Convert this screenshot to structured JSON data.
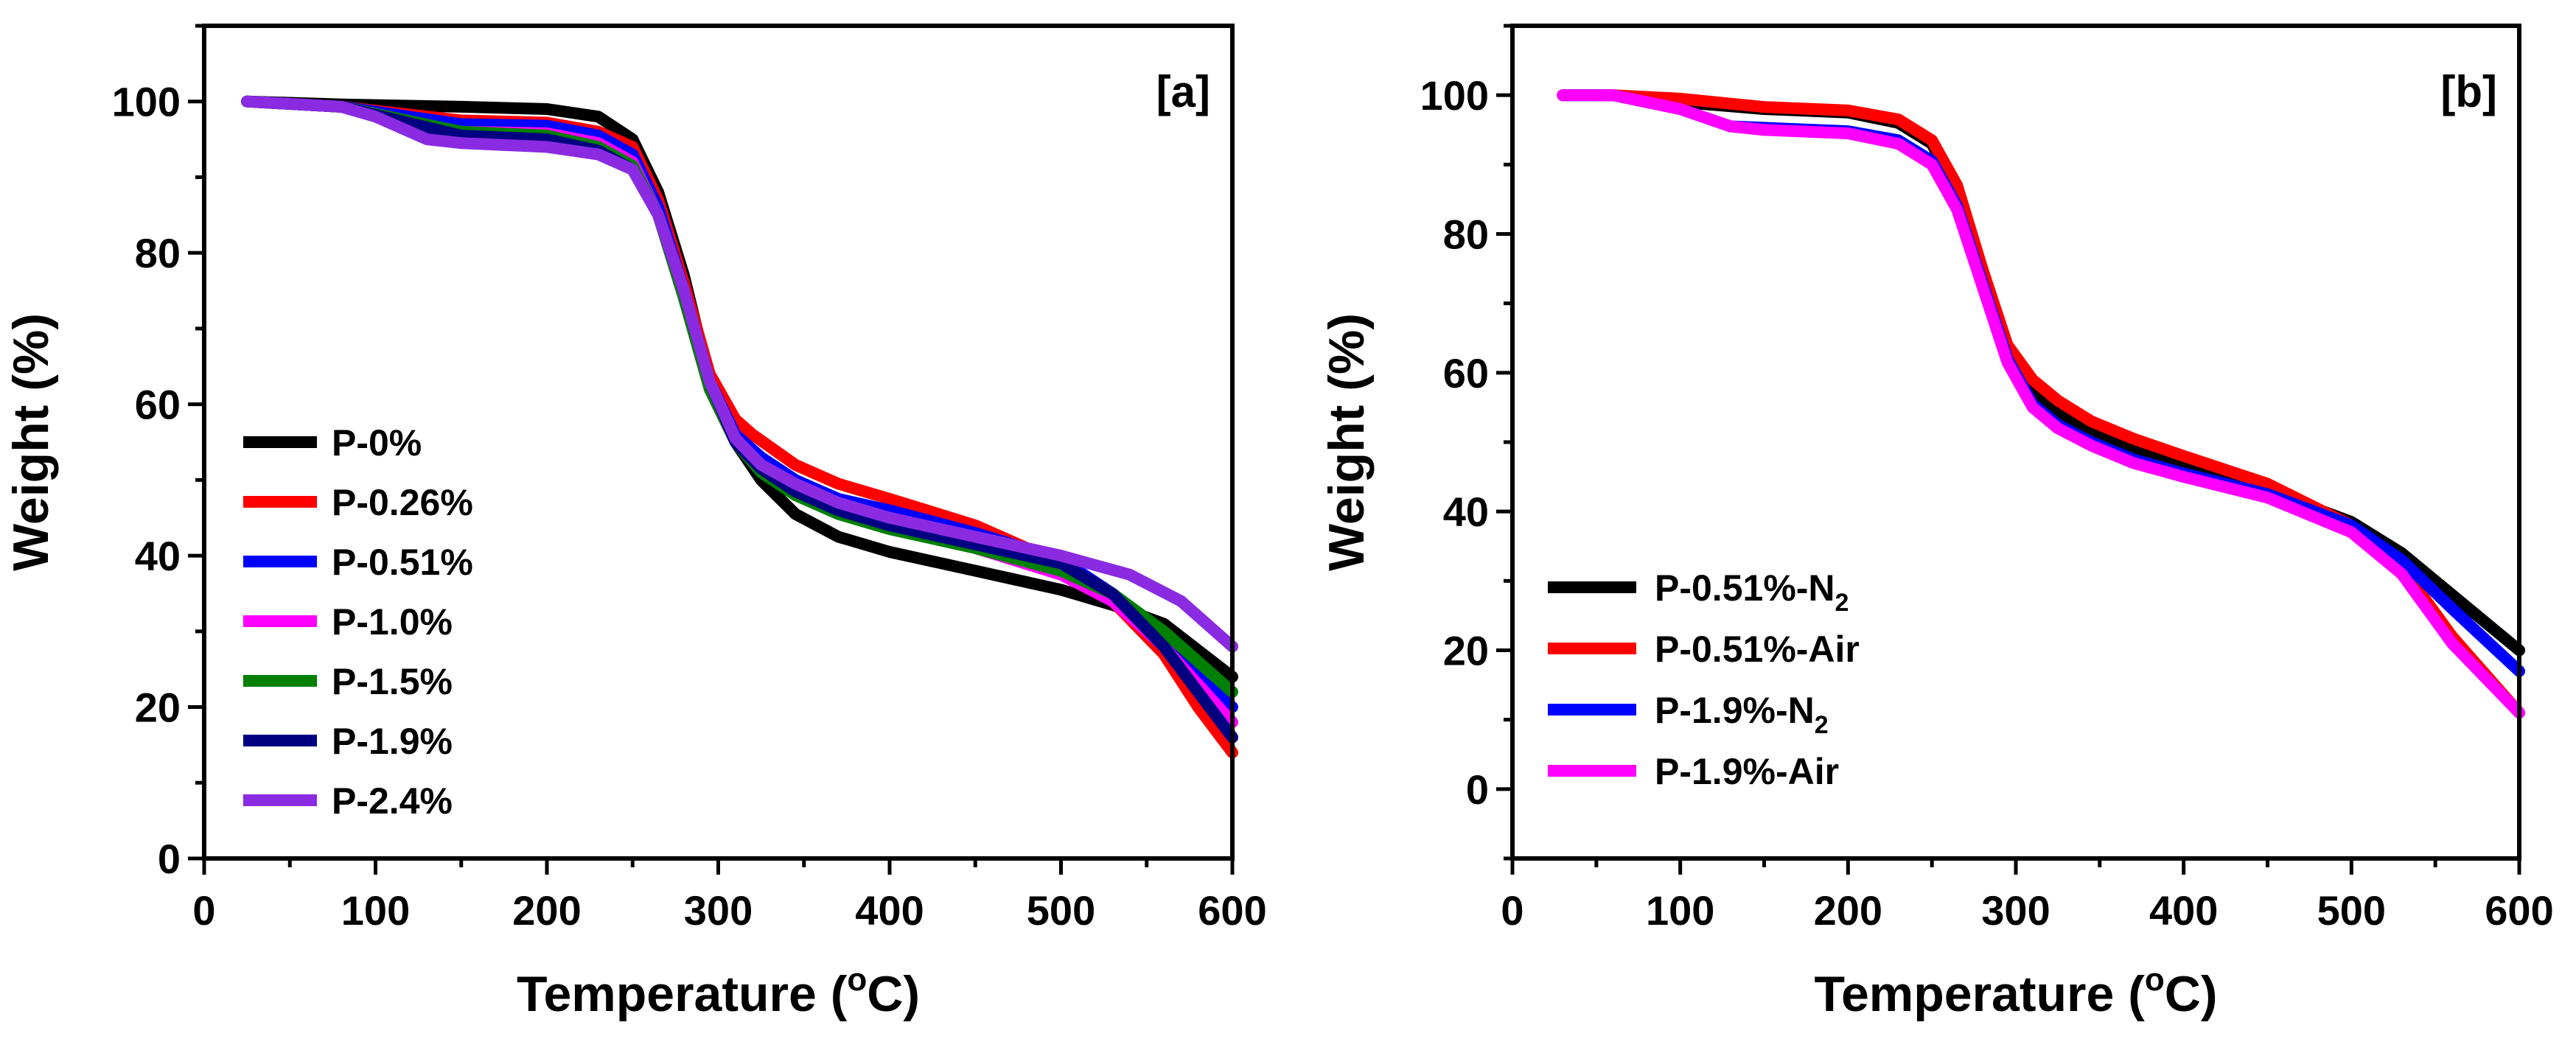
{
  "chart_data": [
    {
      "type": "line",
      "panel_label": "[a]",
      "xlabel": "Temperature (",
      "xlabel_sup": "o",
      "xlabel_tail": "C)",
      "ylabel": "Weight (%)",
      "xlim": [
        0,
        600
      ],
      "ylim": [
        0,
        110
      ],
      "xticks": [
        "0",
        "100",
        "200",
        "300",
        "400",
        "500",
        "600"
      ],
      "yticks": [
        "0",
        "20",
        "40",
        "60",
        "80",
        "100"
      ],
      "legend_position": "left-bottom",
      "series": [
        {
          "name": "P-0%",
          "color": "#000000",
          "points": [
            [
              25,
              100
            ],
            [
              80,
              99.6
            ],
            [
              150,
              99.3
            ],
            [
              200,
              99
            ],
            [
              230,
              98
            ],
            [
              250,
              95
            ],
            [
              265,
              88
            ],
            [
              280,
              77
            ],
            [
              295,
              63
            ],
            [
              310,
              55
            ],
            [
              325,
              50
            ],
            [
              345,
              45.5
            ],
            [
              370,
              42.5
            ],
            [
              400,
              40.5
            ],
            [
              450,
              38
            ],
            [
              500,
              35.5
            ],
            [
              530,
              33.5
            ],
            [
              560,
              31
            ],
            [
              600,
              24
            ]
          ]
        },
        {
          "name": "P-0.26%",
          "color": "#ff0000",
          "points": [
            [
              25,
              100
            ],
            [
              80,
              99.3
            ],
            [
              150,
              97.5
            ],
            [
              200,
              97.2
            ],
            [
              230,
              96
            ],
            [
              250,
              94
            ],
            [
              265,
              87
            ],
            [
              280,
              76
            ],
            [
              295,
              64
            ],
            [
              310,
              58
            ],
            [
              320,
              56
            ],
            [
              345,
              52
            ],
            [
              370,
              49.5
            ],
            [
              400,
              47.5
            ],
            [
              450,
              44
            ],
            [
              500,
              39
            ],
            [
              530,
              34
            ],
            [
              560,
              27
            ],
            [
              580,
              20
            ],
            [
              600,
              14
            ]
          ]
        },
        {
          "name": "P-0.51%",
          "color": "#0000ff",
          "points": [
            [
              25,
              100
            ],
            [
              80,
              99.3
            ],
            [
              150,
              97
            ],
            [
              200,
              96.8
            ],
            [
              230,
              95.5
            ],
            [
              250,
              93
            ],
            [
              265,
              86
            ],
            [
              280,
              75
            ],
            [
              295,
              63
            ],
            [
              310,
              56
            ],
            [
              325,
              53
            ],
            [
              345,
              50
            ],
            [
              370,
              47.5
            ],
            [
              400,
              46
            ],
            [
              450,
              43
            ],
            [
              500,
              39.5
            ],
            [
              530,
              35
            ],
            [
              560,
              29
            ],
            [
              600,
              20
            ]
          ]
        },
        {
          "name": "P-1.0%",
          "color": "#ff00ff",
          "points": [
            [
              25,
              100
            ],
            [
              80,
              99.3
            ],
            [
              150,
              96
            ],
            [
              200,
              95.8
            ],
            [
              230,
              94.5
            ],
            [
              250,
              92
            ],
            [
              265,
              85
            ],
            [
              280,
              74
            ],
            [
              295,
              62
            ],
            [
              310,
              55
            ],
            [
              325,
              52
            ],
            [
              345,
              49
            ],
            [
              370,
              46.5
            ],
            [
              400,
              44.5
            ],
            [
              450,
              41
            ],
            [
              500,
              37.5
            ],
            [
              530,
              34
            ],
            [
              560,
              28
            ],
            [
              600,
              18
            ]
          ]
        },
        {
          "name": "P-1.5%",
          "color": "#008000",
          "points": [
            [
              25,
              100
            ],
            [
              80,
              99.3
            ],
            [
              150,
              96
            ],
            [
              200,
              95.5
            ],
            [
              230,
              94
            ],
            [
              250,
              91.5
            ],
            [
              265,
              85
            ],
            [
              280,
              74
            ],
            [
              295,
              62
            ],
            [
              310,
              55
            ],
            [
              325,
              51
            ],
            [
              345,
              48
            ],
            [
              370,
              45.5
            ],
            [
              400,
              43.5
            ],
            [
              450,
              41
            ],
            [
              500,
              38
            ],
            [
              530,
              35
            ],
            [
              560,
              30
            ],
            [
              600,
              22
            ]
          ]
        },
        {
          "name": "P-1.9%",
          "color": "#000080",
          "points": [
            [
              25,
              100
            ],
            [
              80,
              99.3
            ],
            [
              150,
              95.5
            ],
            [
              200,
              95
            ],
            [
              230,
              93.5
            ],
            [
              250,
              91
            ],
            [
              265,
              85
            ],
            [
              280,
              75
            ],
            [
              295,
              63
            ],
            [
              310,
              55
            ],
            [
              325,
              51.5
            ],
            [
              345,
              48.5
            ],
            [
              370,
              46
            ],
            [
              400,
              44
            ],
            [
              450,
              41.5
            ],
            [
              500,
              39
            ],
            [
              530,
              35
            ],
            [
              560,
              28
            ],
            [
              600,
              16
            ]
          ]
        },
        {
          "name": "P-2.4%",
          "color": "#8a2be2",
          "points": [
            [
              25,
              100
            ],
            [
              80,
              99.3
            ],
            [
              100,
              98
            ],
            [
              130,
              95
            ],
            [
              150,
              94.5
            ],
            [
              200,
              94
            ],
            [
              230,
              93
            ],
            [
              250,
              91
            ],
            [
              265,
              85
            ],
            [
              280,
              75
            ],
            [
              295,
              63
            ],
            [
              310,
              55.5
            ],
            [
              325,
              52
            ],
            [
              345,
              49.5
            ],
            [
              370,
              47
            ],
            [
              400,
              45
            ],
            [
              450,
              42.5
            ],
            [
              500,
              40
            ],
            [
              540,
              37.5
            ],
            [
              570,
              34
            ],
            [
              600,
              28
            ]
          ]
        }
      ]
    },
    {
      "type": "line",
      "panel_label": "[b]",
      "xlabel": "Temperature (",
      "xlabel_sup": "o",
      "xlabel_tail": "C)",
      "ylabel": "Weight (%)",
      "xlim": [
        0,
        600
      ],
      "ylim": [
        -10,
        110
      ],
      "xticks": [
        "0",
        "100",
        "200",
        "300",
        "400",
        "500",
        "600"
      ],
      "yticks": [
        "0",
        "20",
        "40",
        "60",
        "80",
        "100"
      ],
      "legend_position": "left-bottom",
      "series": [
        {
          "name": "P-0.51%-N",
          "sub": "2",
          "color": "#000000",
          "points": [
            [
              30,
              100
            ],
            [
              60,
              100
            ],
            [
              100,
              99
            ],
            [
              150,
              98
            ],
            [
              200,
              97.5
            ],
            [
              230,
              96
            ],
            [
              250,
              93
            ],
            [
              265,
              86
            ],
            [
              280,
              74
            ],
            [
              295,
              63
            ],
            [
              310,
              57
            ],
            [
              325,
              54
            ],
            [
              345,
              51.5
            ],
            [
              370,
              49
            ],
            [
              400,
              46.5
            ],
            [
              450,
              43
            ],
            [
              500,
              38.5
            ],
            [
              530,
              34
            ],
            [
              560,
              28
            ],
            [
              600,
              20
            ]
          ]
        },
        {
          "name": "P-0.51%-Air",
          "sub": "",
          "color": "#ff0000",
          "points": [
            [
              30,
              100
            ],
            [
              60,
              100
            ],
            [
              100,
              99.5
            ],
            [
              150,
              98.3
            ],
            [
              200,
              97.8
            ],
            [
              230,
              96.5
            ],
            [
              250,
              93.5
            ],
            [
              265,
              87
            ],
            [
              280,
              75
            ],
            [
              295,
              64
            ],
            [
              310,
              59
            ],
            [
              325,
              56
            ],
            [
              345,
              53
            ],
            [
              370,
              50.5
            ],
            [
              400,
              48
            ],
            [
              450,
              44
            ],
            [
              500,
              38
            ],
            [
              530,
              32
            ],
            [
              560,
              22
            ],
            [
              600,
              11
            ]
          ]
        },
        {
          "name": "P-1.9%-N",
          "sub": "2",
          "color": "#0000ff",
          "points": [
            [
              30,
              100
            ],
            [
              60,
              100
            ],
            [
              100,
              98
            ],
            [
              130,
              95.5
            ],
            [
              150,
              95.3
            ],
            [
              200,
              94.8
            ],
            [
              230,
              93.5
            ],
            [
              250,
              90.5
            ],
            [
              265,
              84
            ],
            [
              280,
              73
            ],
            [
              295,
              62
            ],
            [
              310,
              55.5
            ],
            [
              325,
              52.5
            ],
            [
              345,
              50
            ],
            [
              370,
              47.5
            ],
            [
              400,
              45.5
            ],
            [
              450,
              42.5
            ],
            [
              500,
              38
            ],
            [
              530,
              33
            ],
            [
              560,
              26
            ],
            [
              600,
              17
            ]
          ]
        },
        {
          "name": "P-1.9%-Air",
          "sub": "",
          "color": "#ff00ff",
          "points": [
            [
              30,
              100
            ],
            [
              60,
              100
            ],
            [
              100,
              98
            ],
            [
              130,
              95.5
            ],
            [
              150,
              95
            ],
            [
              200,
              94.5
            ],
            [
              230,
              93
            ],
            [
              250,
              90
            ],
            [
              265,
              83.5
            ],
            [
              280,
              72.5
            ],
            [
              295,
              61.5
            ],
            [
              310,
              55
            ],
            [
              325,
              52
            ],
            [
              345,
              49.5
            ],
            [
              370,
              47
            ],
            [
              400,
              45
            ],
            [
              450,
              42
            ],
            [
              500,
              37
            ],
            [
              530,
              31
            ],
            [
              560,
              21
            ],
            [
              600,
              11
            ]
          ]
        }
      ]
    }
  ]
}
